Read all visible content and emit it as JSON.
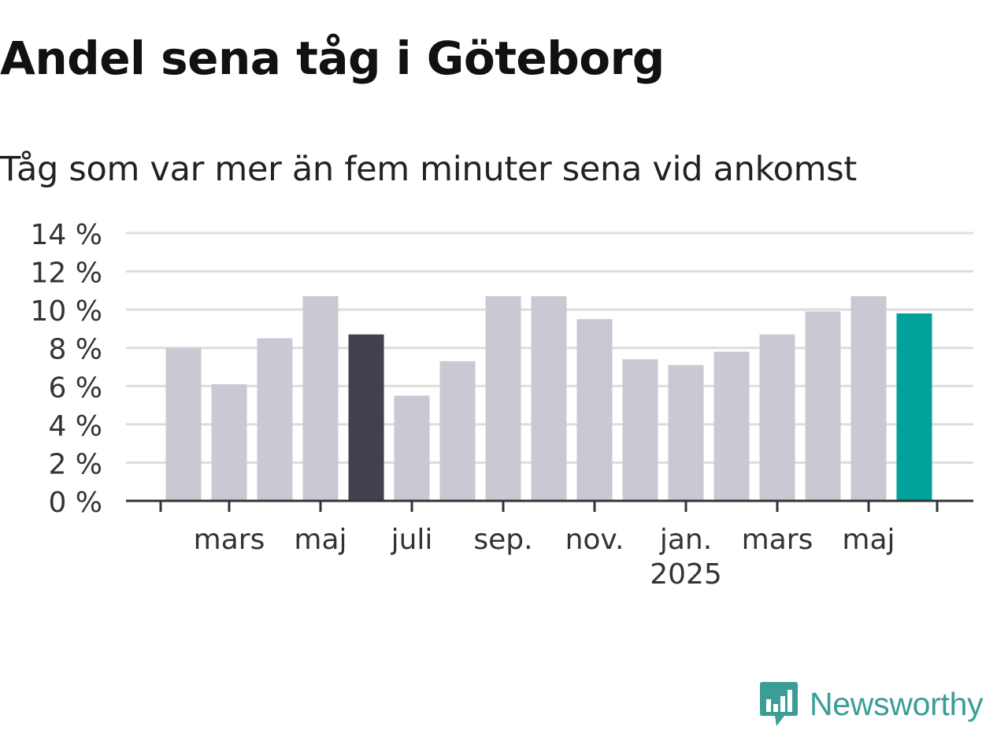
{
  "header": {
    "title": "Andel sena tåg i Göteborg",
    "subtitle": "Tåg som var mer än fem minuter sena vid ankomst"
  },
  "logo": {
    "text": "Newsworthy",
    "icon": "newsworthy-logo-icon",
    "color": "#3a9e96"
  },
  "colors": {
    "bar_default": "#c9c8d3",
    "bar_highlight": "#42404d",
    "bar_latest": "#00a29a",
    "grid": "#dddddd",
    "axis": "#333333",
    "text": "#333333"
  },
  "chart_data": {
    "type": "bar",
    "x": [
      "2024-02",
      "2024-03",
      "2024-04",
      "2024-05",
      "2024-06",
      "2024-07",
      "2024-08",
      "2024-09",
      "2024-10",
      "2024-11",
      "2024-12",
      "2025-01",
      "2025-02",
      "2025-03",
      "2025-04",
      "2025-05",
      "2025-06"
    ],
    "values": [
      8.0,
      6.1,
      8.5,
      10.7,
      8.7,
      5.5,
      7.3,
      10.7,
      10.7,
      9.5,
      7.4,
      7.1,
      7.8,
      8.7,
      9.9,
      10.7,
      9.8
    ],
    "highlight": [
      "normal",
      "normal",
      "normal",
      "normal",
      "highlight",
      "normal",
      "normal",
      "normal",
      "normal",
      "normal",
      "normal",
      "normal",
      "normal",
      "normal",
      "normal",
      "normal",
      "latest"
    ],
    "ylim": [
      0,
      14
    ],
    "yticks": [
      {
        "value": 0,
        "label": "0 %"
      },
      {
        "value": 2,
        "label": "2 %"
      },
      {
        "value": 4,
        "label": "4 %"
      },
      {
        "value": 6,
        "label": "6 %"
      },
      {
        "value": 8,
        "label": "8 %"
      },
      {
        "value": 10,
        "label": "10 %"
      },
      {
        "value": 12,
        "label": "12 %"
      },
      {
        "value": 14,
        "label": "14 %"
      }
    ],
    "xticks": [
      {
        "index": 1,
        "label": "mars",
        "sublabel": ""
      },
      {
        "index": 3,
        "label": "maj",
        "sublabel": ""
      },
      {
        "index": 5,
        "label": "juli",
        "sublabel": ""
      },
      {
        "index": 7,
        "label": "sep.",
        "sublabel": ""
      },
      {
        "index": 9,
        "label": "nov.",
        "sublabel": ""
      },
      {
        "index": 11,
        "label": "jan.",
        "sublabel": "2025"
      },
      {
        "index": 13,
        "label": "mars",
        "sublabel": ""
      },
      {
        "index": 15,
        "label": "maj",
        "sublabel": ""
      }
    ],
    "xlabel": "",
    "ylabel": "",
    "grid": true
  }
}
